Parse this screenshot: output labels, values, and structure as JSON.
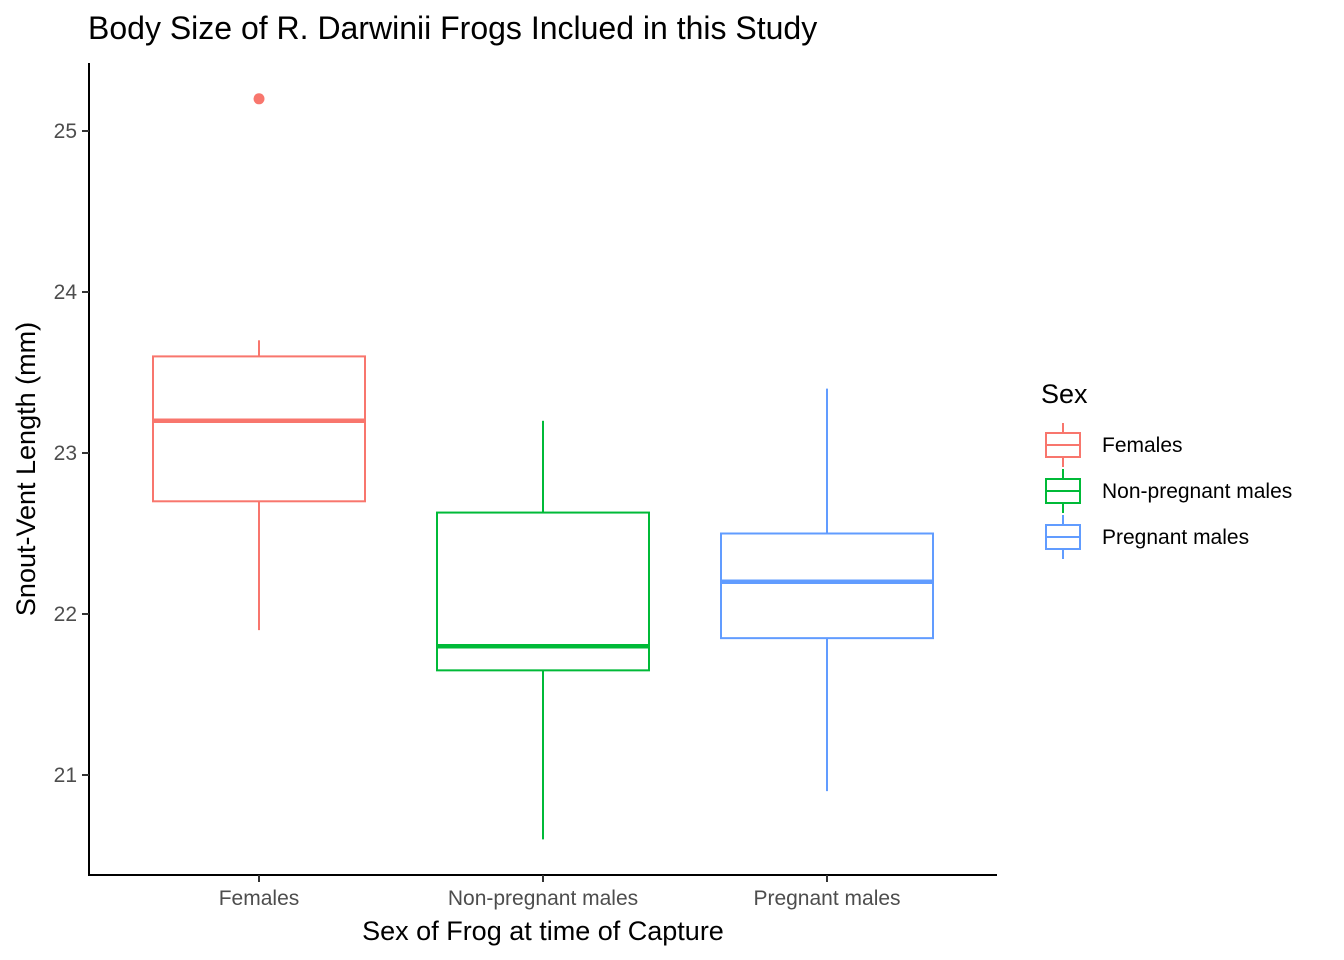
{
  "chart_data": {
    "type": "box",
    "title": "Body Size of R. Darwinii Frogs Inclued in this Study",
    "xlabel": "Sex of Frog at time of Capture",
    "ylabel": "Snout-Vent Length (mm)",
    "categories": [
      "Females",
      "Non-pregnant males",
      "Pregnant males"
    ],
    "ylim": [
      20.4,
      25.4
    ],
    "yticks": [
      21,
      22,
      23,
      24,
      25
    ],
    "grid": false,
    "legend": {
      "title": "Sex",
      "position": "right",
      "entries": [
        "Females",
        "Non-pregnant males",
        "Pregnant males"
      ]
    },
    "series": [
      {
        "name": "Females",
        "color": "#F8766D",
        "min": 21.9,
        "q1": 22.7,
        "median": 23.2,
        "q3": 23.6,
        "max": 23.7,
        "outliers": [
          25.2
        ]
      },
      {
        "name": "Non-pregnant males",
        "color": "#00BA38",
        "min": 20.6,
        "q1": 21.65,
        "median": 21.8,
        "q3": 22.63,
        "max": 23.2,
        "outliers": []
      },
      {
        "name": "Pregnant males",
        "color": "#619CFF",
        "min": 20.9,
        "q1": 21.85,
        "median": 22.2,
        "q3": 22.5,
        "max": 23.4,
        "outliers": []
      }
    ]
  }
}
